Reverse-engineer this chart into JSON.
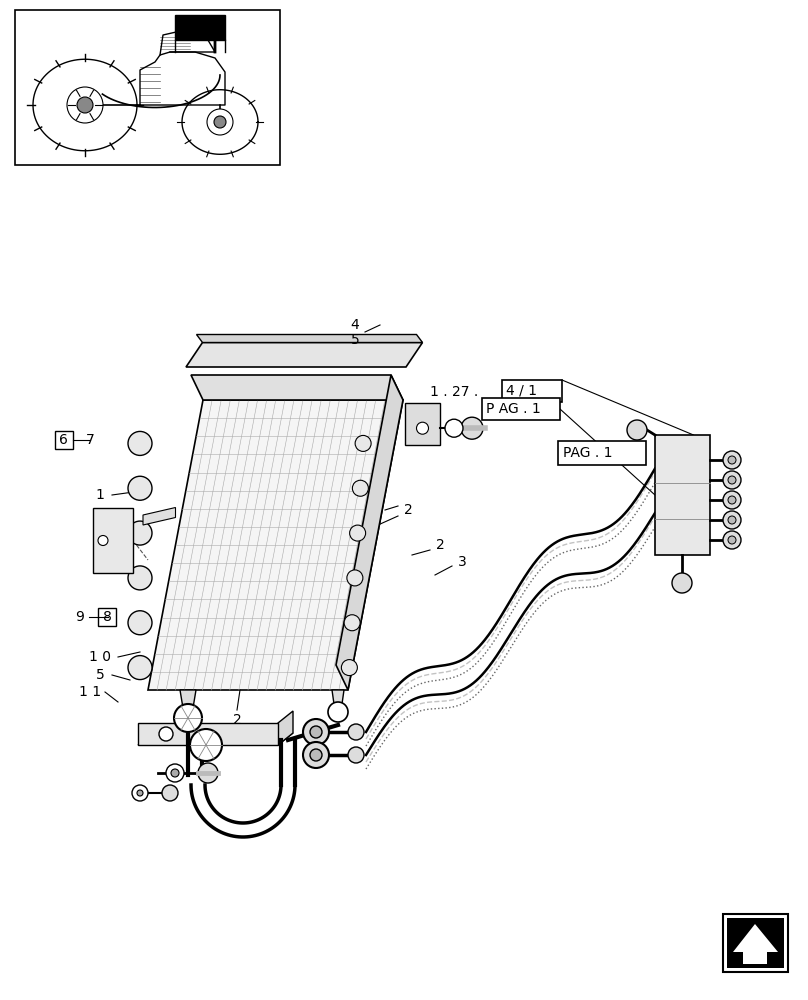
{
  "bg_color": "#ffffff",
  "line_color": "#000000",
  "fig_width": 8.08,
  "fig_height": 10.0,
  "dpi": 100
}
